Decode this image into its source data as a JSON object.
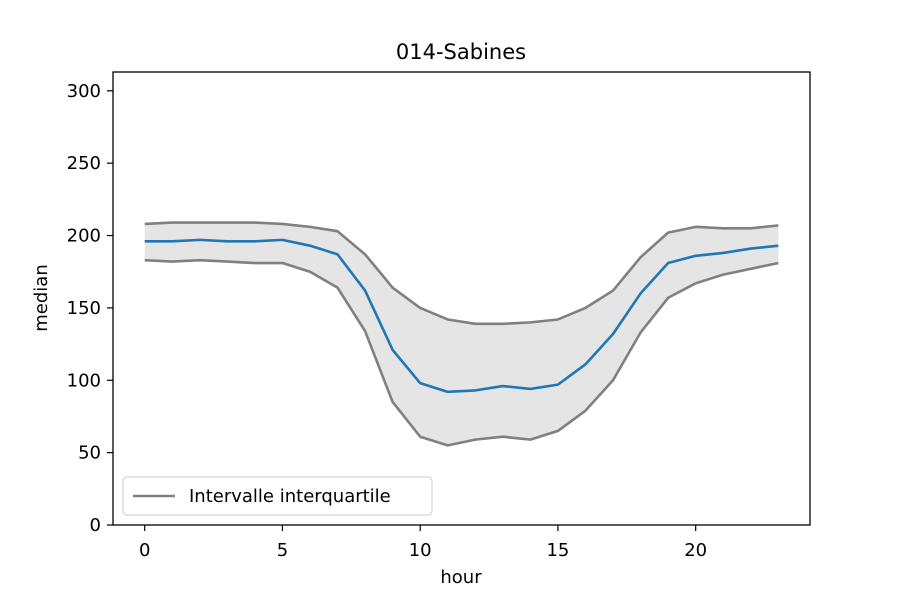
{
  "chart_data": {
    "type": "line",
    "title": "014-Sabines",
    "xlabel": "hour",
    "ylabel": "median",
    "xlim": [
      -1.15,
      24.15
    ],
    "ylim": [
      0,
      313
    ],
    "x_ticks": [
      0,
      5,
      10,
      15,
      20
    ],
    "y_ticks": [
      0,
      50,
      100,
      150,
      200,
      250,
      300
    ],
    "grid": false,
    "legend_position": "bottom-left",
    "x": [
      0,
      1,
      2,
      3,
      4,
      5,
      6,
      7,
      8,
      9,
      10,
      11,
      12,
      13,
      14,
      15,
      16,
      17,
      18,
      19,
      20,
      21,
      22,
      23
    ],
    "series": [
      {
        "key": "median",
        "color": "#1f77b4",
        "values": [
          196,
          196,
          197,
          196,
          196,
          197,
          193,
          187,
          162,
          121,
          98,
          92,
          93,
          96,
          94,
          97,
          111,
          132,
          160,
          181,
          186,
          188,
          191,
          193
        ]
      },
      {
        "key": "q3",
        "name": "Intervalle interquartile",
        "color": "#808080",
        "values": [
          208,
          209,
          209,
          209,
          209,
          208,
          206,
          203,
          187,
          164,
          150,
          142,
          139,
          139,
          140,
          142,
          150,
          162,
          185,
          202,
          206,
          205,
          205,
          207
        ]
      },
      {
        "key": "q1",
        "color": "#808080",
        "values": [
          183,
          182,
          183,
          182,
          181,
          181,
          175,
          164,
          134,
          85,
          61,
          55,
          59,
          61,
          59,
          65,
          79,
          100,
          133,
          157,
          167,
          173,
          177,
          181
        ]
      }
    ],
    "band": {
      "lower": "q1",
      "upper": "q3",
      "color": "#e5e5e5"
    }
  }
}
